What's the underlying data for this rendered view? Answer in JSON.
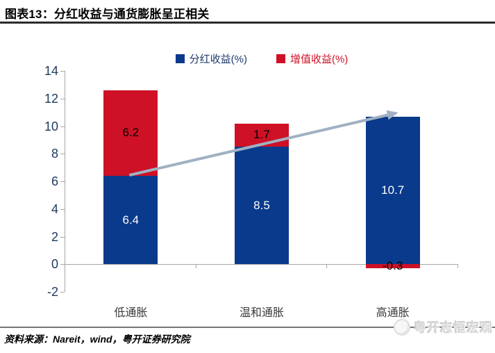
{
  "header": {
    "title": "图表13：分红收益与通货膨胀呈正相关"
  },
  "chart_data": {
    "type": "bar",
    "stacked": true,
    "title": "图表13：分红收益与通货膨胀呈正相关",
    "categories": [
      "低通胀",
      "温和通胀",
      "高通胀"
    ],
    "series": [
      {
        "name": "分红收益(%)",
        "color": "#0a3a8c",
        "label_color": "#ffffff",
        "legend_text_color": "#1f3a6e",
        "values": [
          6.4,
          8.5,
          10.7
        ]
      },
      {
        "name": "增值收益(%)",
        "color": "#ce1126",
        "label_color": "#000000",
        "legend_text_color": "#ce1126",
        "values": [
          6.2,
          1.7,
          -0.3
        ]
      }
    ],
    "xlabel": "",
    "ylabel": "",
    "ylim": [
      -2,
      14
    ],
    "yticks": [
      14,
      12,
      10,
      8,
      6,
      4,
      2,
      0,
      -2
    ],
    "grid": false,
    "legend_position": "top",
    "trend_arrow": {
      "from_category": 0,
      "from_value": 6.45,
      "to_category": 2,
      "to_value": 10.95,
      "color": "#a0b1c3"
    }
  },
  "style_colors": {
    "axis_line": "#a6a6a6",
    "ytick_label": "#1f3a60",
    "category_label": "#3a3a3a",
    "title_rule": "#2b2b2b",
    "footer_rule": "#767676"
  },
  "footer": {
    "source": "资料来源：Nareit，wind，粤开证券研究院",
    "watermark": "粤开志恒宏观"
  }
}
